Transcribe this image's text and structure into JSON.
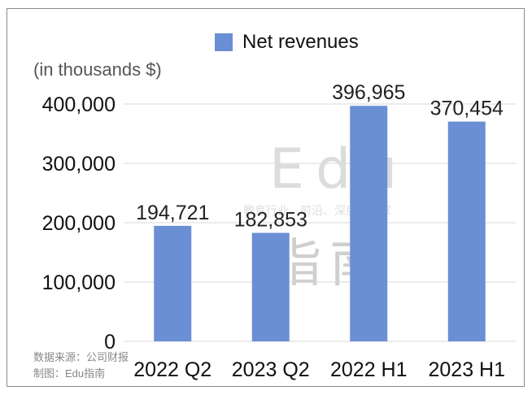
{
  "legend": {
    "label": "Net revenues",
    "color": "#6a8fd4"
  },
  "unit_note": "(in thousands $)",
  "source": {
    "line1": "数据来源：公司财报",
    "line2": "制图：Edu指南"
  },
  "watermark": {
    "main": "Edu",
    "tagline": "教育行业、前沿、深度、独家",
    "cn": "指南"
  },
  "chart_data": {
    "type": "bar",
    "title": "",
    "xlabel": "",
    "ylabel": "",
    "categories": [
      "2022 Q2",
      "2023 Q2",
      "2022 H1",
      "2023 H1"
    ],
    "series": [
      {
        "name": "Net revenues",
        "values": [
          194721,
          182853,
          396965,
          370454
        ],
        "color": "#6a8fd4"
      }
    ],
    "data_labels": [
      "194,721",
      "182,853",
      "396,965",
      "370,454"
    ],
    "ylim": [
      0,
      400000
    ],
    "yticks": [
      0,
      100000,
      200000,
      300000,
      400000
    ],
    "ytick_labels": [
      "0",
      "100,000",
      "200,000",
      "300,000",
      "400,000"
    ],
    "grid": true,
    "legend_position": "top"
  }
}
